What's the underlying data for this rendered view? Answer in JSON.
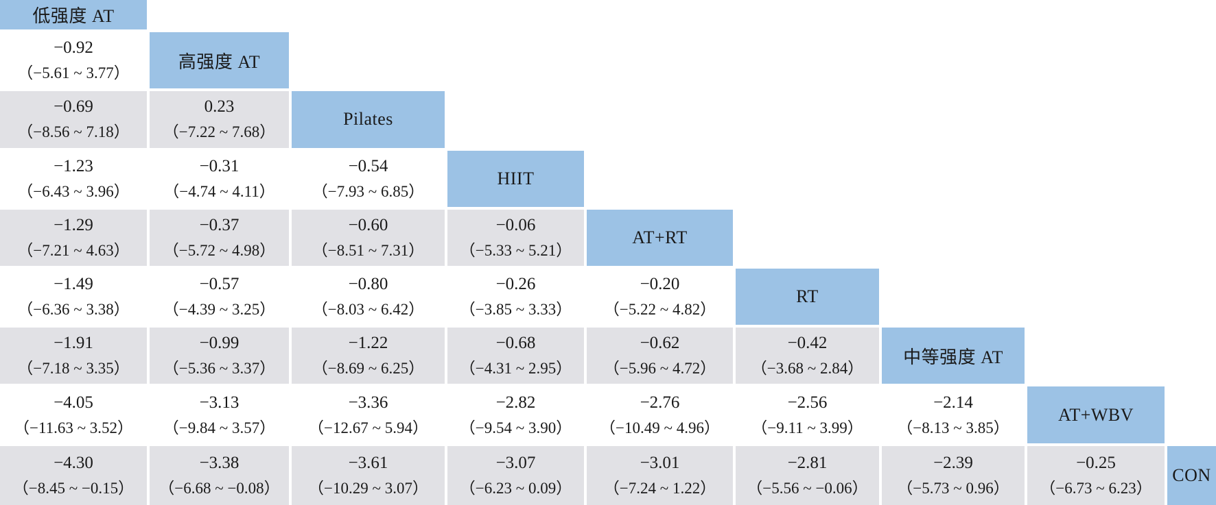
{
  "chart_data": {
    "type": "table",
    "title": "",
    "description_visible": false,
    "layout": "lower-triangular league table; diagonal cells are treatment names; cell (row i, col j) shows effect estimate with 95% CI",
    "colors": {
      "diagonal_fill": "#9cc2e5",
      "stripe_fill": "#e1e1e5",
      "plain_fill": "#ffffff",
      "text": "#1a1a1a"
    },
    "treatments": [
      "低强度 AT",
      "高强度 AT",
      "Pilates",
      "HIIT",
      "AT+RT",
      "RT",
      "中等强度 AT",
      "AT+WBV",
      "CON"
    ],
    "rows": [
      {
        "treatment": "低强度 AT",
        "cells": []
      },
      {
        "treatment": "高强度 AT",
        "cells": [
          {
            "est": "−0.92",
            "ci": "（−5.61 ~ 3.77）"
          }
        ]
      },
      {
        "treatment": "Pilates",
        "cells": [
          {
            "est": "−0.69",
            "ci": "（−8.56 ~ 7.18）"
          },
          {
            "est": "0.23",
            "ci": "（−7.22 ~ 7.68）"
          }
        ]
      },
      {
        "treatment": "HIIT",
        "cells": [
          {
            "est": "−1.23",
            "ci": "（−6.43 ~ 3.96）"
          },
          {
            "est": "−0.31",
            "ci": "（−4.74 ~ 4.11）"
          },
          {
            "est": "−0.54",
            "ci": "（−7.93 ~ 6.85）"
          }
        ]
      },
      {
        "treatment": "AT+RT",
        "cells": [
          {
            "est": "−1.29",
            "ci": "（−7.21 ~ 4.63）"
          },
          {
            "est": "−0.37",
            "ci": "（−5.72 ~ 4.98）"
          },
          {
            "est": "−0.60",
            "ci": "（−8.51 ~ 7.31）"
          },
          {
            "est": "−0.06",
            "ci": "（−5.33 ~ 5.21）"
          }
        ]
      },
      {
        "treatment": "RT",
        "cells": [
          {
            "est": "−1.49",
            "ci": "（−6.36 ~ 3.38）"
          },
          {
            "est": "−0.57",
            "ci": "（−4.39 ~ 3.25）"
          },
          {
            "est": "−0.80",
            "ci": "（−8.03 ~ 6.42）"
          },
          {
            "est": "−0.26",
            "ci": "（−3.85 ~ 3.33）"
          },
          {
            "est": "−0.20",
            "ci": "（−5.22 ~ 4.82）"
          }
        ]
      },
      {
        "treatment": "中等强度 AT",
        "cells": [
          {
            "est": "−1.91",
            "ci": "（−7.18 ~ 3.35）"
          },
          {
            "est": "−0.99",
            "ci": "（−5.36 ~ 3.37）"
          },
          {
            "est": "−1.22",
            "ci": "（−8.69 ~ 6.25）"
          },
          {
            "est": "−0.68",
            "ci": "（−4.31 ~ 2.95）"
          },
          {
            "est": "−0.62",
            "ci": "（−5.96 ~ 4.72）"
          },
          {
            "est": "−0.42",
            "ci": "（−3.68 ~ 2.84）"
          }
        ]
      },
      {
        "treatment": "AT+WBV",
        "cells": [
          {
            "est": "−4.05",
            "ci": "（−11.63 ~ 3.52）"
          },
          {
            "est": "−3.13",
            "ci": "（−9.84 ~ 3.57）"
          },
          {
            "est": "−3.36",
            "ci": "（−12.67 ~ 5.94）"
          },
          {
            "est": "−2.82",
            "ci": "（−9.54 ~ 3.90）"
          },
          {
            "est": "−2.76",
            "ci": "（−10.49 ~ 4.96）"
          },
          {
            "est": "−2.56",
            "ci": "（−9.11 ~ 3.99）"
          },
          {
            "est": "−2.14",
            "ci": "（−8.13 ~ 3.85）"
          }
        ]
      },
      {
        "treatment": "CON",
        "cells": [
          {
            "est": "−4.30",
            "ci": "（−8.45 ~ −0.15）"
          },
          {
            "est": "−3.38",
            "ci": "（−6.68 ~ −0.08）"
          },
          {
            "est": "−3.61",
            "ci": "（−10.29 ~ 3.07）"
          },
          {
            "est": "−3.07",
            "ci": "（−6.23 ~ 0.09）"
          },
          {
            "est": "−3.01",
            "ci": "（−7.24 ~ 1.22）"
          },
          {
            "est": "−2.81",
            "ci": "（−5.56 ~ −0.06）"
          },
          {
            "est": "−2.39",
            "ci": "（−5.73 ~ 0.96）"
          },
          {
            "est": "−0.25",
            "ci": "（−6.73 ~ 6.23）"
          }
        ]
      }
    ]
  }
}
